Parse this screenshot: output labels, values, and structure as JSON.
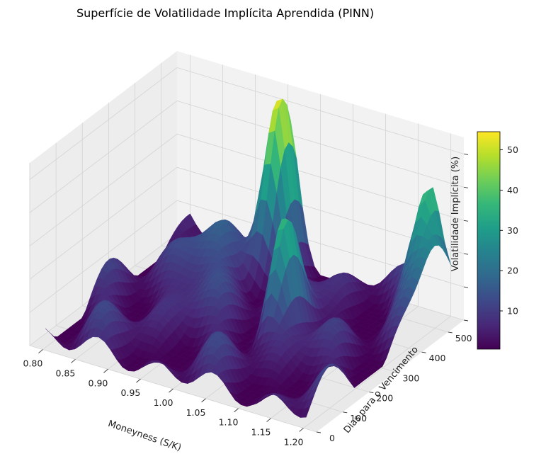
{
  "chart_data": {
    "type": "surface3d",
    "title": "Superfície de Volatilidade Implícita Aprendida (PINN)",
    "xlabel": "Moneyness (S/K)",
    "ylabel": "Dias para o Vencimento",
    "zlabel": "Volatilidade Implícita (%)",
    "colormap": "viridis",
    "xlim": [
      0.78,
      1.22
    ],
    "ylim": [
      0,
      560
    ],
    "zlim": [
      0,
      55
    ],
    "x_ticks": [
      "0.80",
      "0.85",
      "0.90",
      "0.95",
      "1.00",
      "1.05",
      "1.10",
      "1.15",
      "1.20"
    ],
    "y_ticks": [
      "0",
      "100",
      "200",
      "300",
      "400",
      "500"
    ],
    "z_ticks": [
      "0",
      "10",
      "20",
      "30",
      "40",
      "50"
    ],
    "colorbar": {
      "min": 0.5,
      "max": 54.5,
      "ticks": [
        "10",
        "20",
        "30",
        "40",
        "50"
      ]
    },
    "surface_peaks": [
      {
        "x": 0.95,
        "y": 520,
        "z": 55
      },
      {
        "x": 1.17,
        "y": 560,
        "z": 45
      },
      {
        "x": 1.05,
        "y": 300,
        "z": 42
      },
      {
        "x": 1.2,
        "y": 500,
        "z": 27
      }
    ],
    "colors": {
      "viridis": [
        "#440154",
        "#482878",
        "#3e4989",
        "#31688e",
        "#26828e",
        "#1f9e89",
        "#35b779",
        "#6ece58",
        "#b5de2b",
        "#fde725"
      ],
      "pane": "#f2f2f2",
      "grid": "#d6d6d6"
    }
  }
}
